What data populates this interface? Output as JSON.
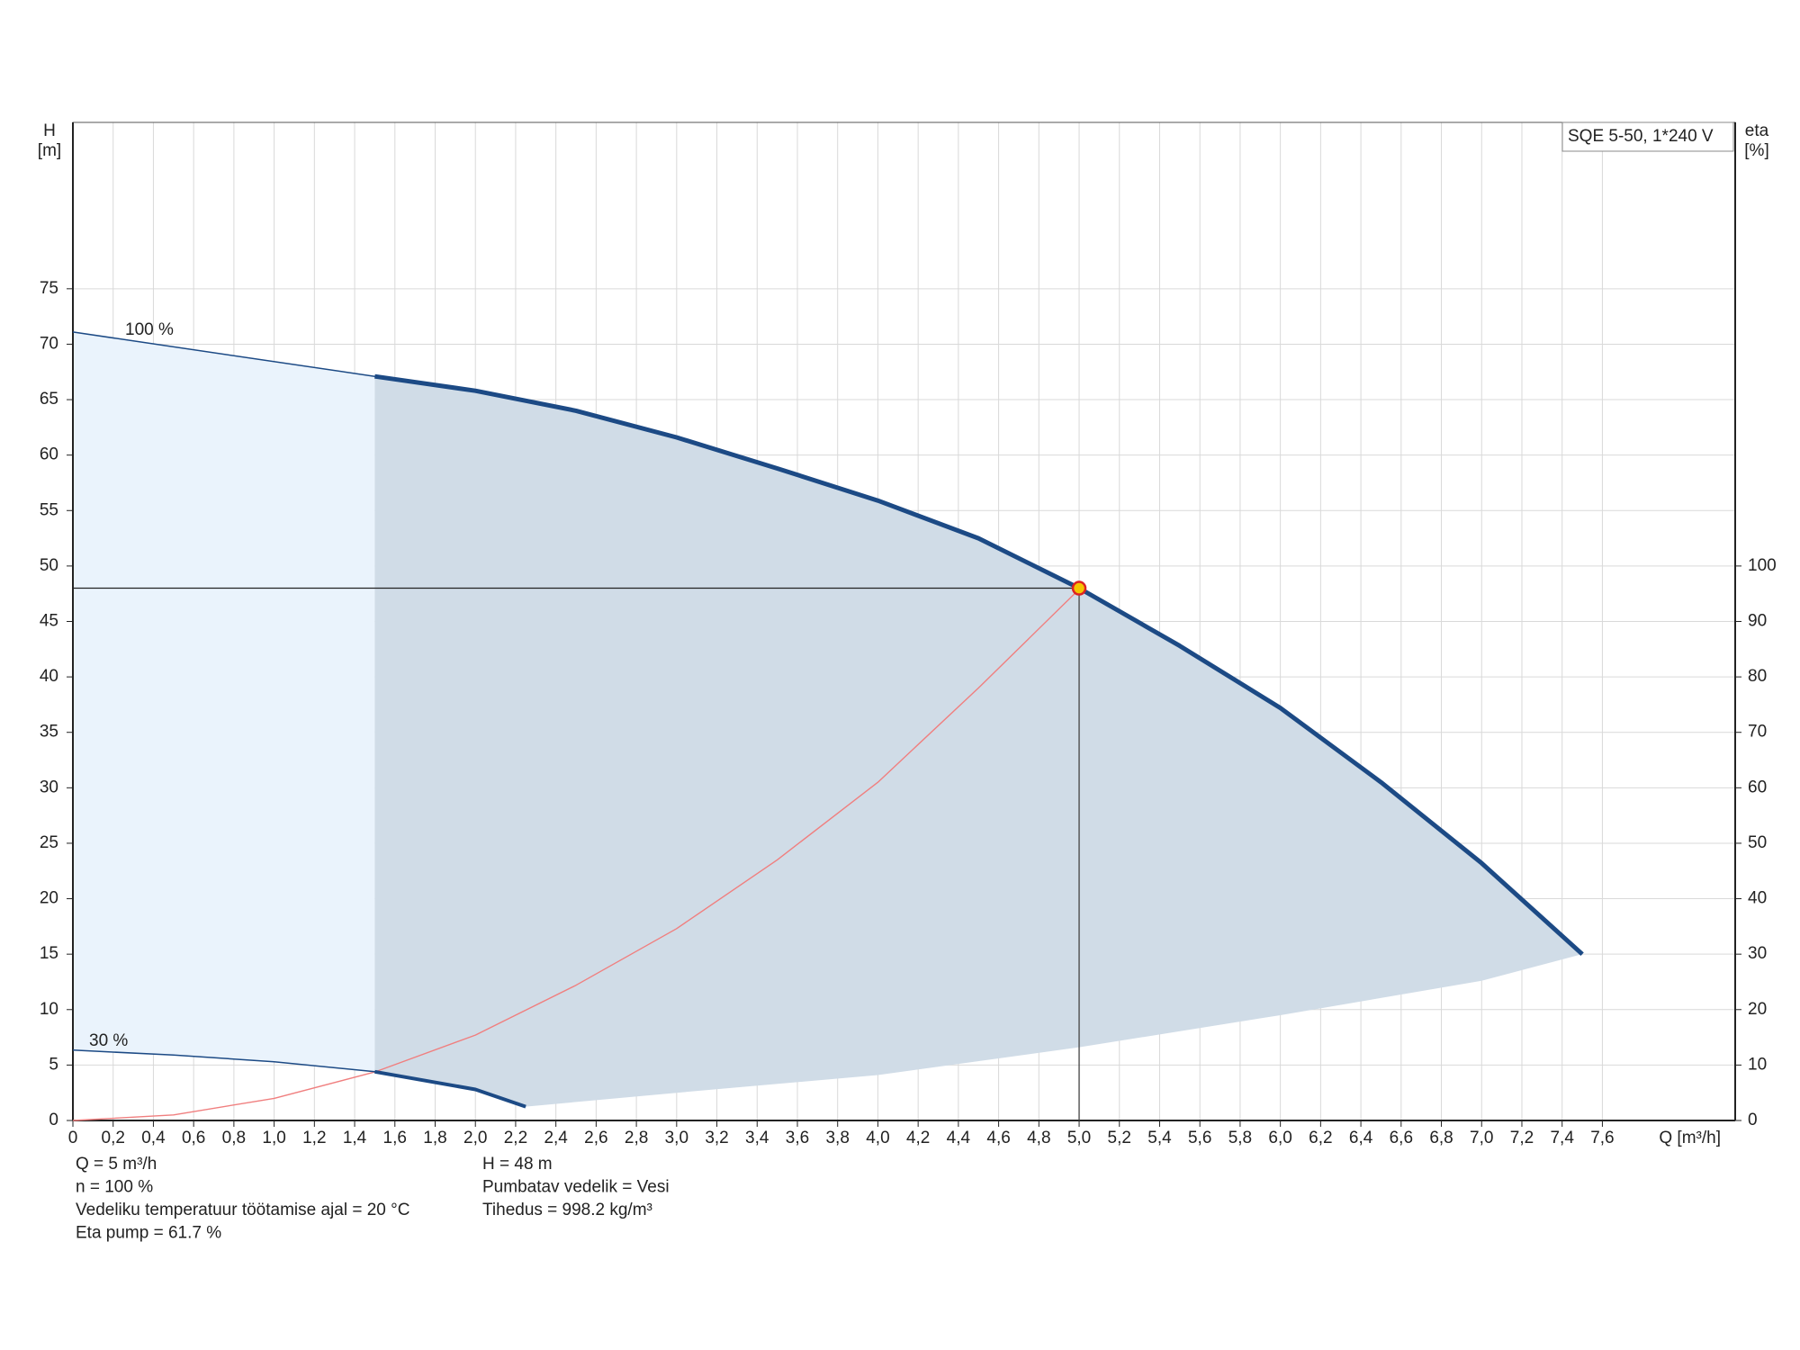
{
  "chart_data": {
    "type": "line",
    "legend_title": "SQE 5-50, 1*240 V",
    "x_label": "Q [m³/h]",
    "y_label": "H",
    "y_unit": "[m]",
    "y2_label": "eta",
    "y2_unit": "[%]",
    "xlim": [
      0,
      8.26
    ],
    "ylim": [
      0,
      90
    ],
    "y2lim": [
      0,
      180
    ],
    "grid": true,
    "xticks": [
      0,
      {
        "value": 0.2,
        "label": "0,2"
      },
      {
        "value": 0.4,
        "label": "0,4"
      },
      {
        "value": 0.6,
        "label": "0,6"
      },
      {
        "value": 0.8,
        "label": "0,8"
      },
      {
        "value": 1,
        "label": "1,0"
      },
      {
        "value": 1.2,
        "label": "1,2"
      },
      {
        "value": 1.4,
        "label": "1,4"
      },
      {
        "value": 1.6,
        "label": "1,6"
      },
      {
        "value": 1.8,
        "label": "1,8"
      },
      {
        "value": 2,
        "label": "2,0"
      },
      {
        "value": 2.2,
        "label": "2,2"
      },
      {
        "value": 2.4,
        "label": "2,4"
      },
      {
        "value": 2.6,
        "label": "2,6"
      },
      {
        "value": 2.8,
        "label": "2,8"
      },
      {
        "value": 3,
        "label": "3,0"
      },
      {
        "value": 3.2,
        "label": "3,2"
      },
      {
        "value": 3.4,
        "label": "3,4"
      },
      {
        "value": 3.6,
        "label": "3,6"
      },
      {
        "value": 3.8,
        "label": "3,8"
      },
      {
        "value": 4,
        "label": "4,0"
      },
      {
        "value": 4.2,
        "label": "4,2"
      },
      {
        "value": 4.4,
        "label": "4,4"
      },
      {
        "value": 4.6,
        "label": "4,6"
      },
      {
        "value": 4.8,
        "label": "4,8"
      },
      {
        "value": 5,
        "label": "5,0"
      },
      {
        "value": 5.2,
        "label": "5,2"
      },
      {
        "value": 5.4,
        "label": "5,4"
      },
      {
        "value": 5.6,
        "label": "5,6"
      },
      {
        "value": 5.8,
        "label": "5,8"
      },
      {
        "value": 6,
        "label": "6,0"
      },
      {
        "value": 6.2,
        "label": "6,2"
      },
      {
        "value": 6.4,
        "label": "6,4"
      },
      {
        "value": 6.6,
        "label": "6,6"
      },
      {
        "value": 6.8,
        "label": "6,8"
      },
      {
        "value": 7,
        "label": "7,0"
      },
      {
        "value": 7.2,
        "label": "7,2"
      },
      {
        "value": 7.4,
        "label": "7,4"
      },
      {
        "value": 7.6,
        "label": "7,6"
      }
    ],
    "yticks": [
      0,
      5,
      10,
      15,
      20,
      25,
      30,
      35,
      40,
      45,
      50,
      55,
      60,
      65,
      70,
      75
    ],
    "y2ticks": [
      0,
      10,
      20,
      30,
      40,
      50,
      60,
      70,
      80,
      90,
      100
    ],
    "min_flow": 1.5,
    "series": [
      {
        "name": "100 %",
        "color": "#1c4a85",
        "x": [
          0,
          1.5,
          2,
          2.5,
          3,
          3.5,
          4,
          4.5,
          5,
          5.5,
          6,
          6.5,
          7,
          7.5
        ],
        "values": [
          71.1,
          67.1,
          65.8,
          64,
          61.6,
          58.8,
          55.9,
          52.5,
          48,
          42.8,
          37.2,
          30.5,
          23.2,
          15
        ]
      },
      {
        "name": "30 %",
        "color": "#1c4a85",
        "x": [
          0,
          0.5,
          1,
          1.5,
          2,
          2.25
        ],
        "values": [
          6.35,
          5.9,
          5.3,
          4.4,
          2.8,
          1.25
        ]
      },
      {
        "color": "#1c4a85",
        "x": [
          2.25,
          3,
          4,
          5,
          6,
          7,
          7.5
        ],
        "values": [
          1.25,
          2.5,
          4.1,
          6.6,
          9.5,
          12.6,
          15
        ]
      },
      {
        "color": "#f07f7f",
        "axis": "y2",
        "x": [
          0,
          0.5,
          1,
          1.5,
          2,
          2.5,
          3,
          3.5,
          4,
          4.5,
          5
        ],
        "values": [
          0,
          1,
          4,
          8.75,
          15.4,
          24.4,
          34.6,
          47,
          61,
          78,
          95.8
        ]
      }
    ],
    "area_colors": [
      "#eaf3fc",
      "#d0dce7"
    ],
    "duty_point": {
      "x": 5,
      "y": 48,
      "color": "#f5c400"
    },
    "notes_left": [
      "Q = 5 m³/h",
      "n = 100 %",
      "Vedeliku temperatuur töötamise ajal = 20 °C",
      "Eta pump = 61.7 %"
    ],
    "notes_right": [
      "H = 48 m",
      "Pumbatav vedelik = Vesi",
      "Tihedus = 998.2 kg/m³"
    ]
  }
}
